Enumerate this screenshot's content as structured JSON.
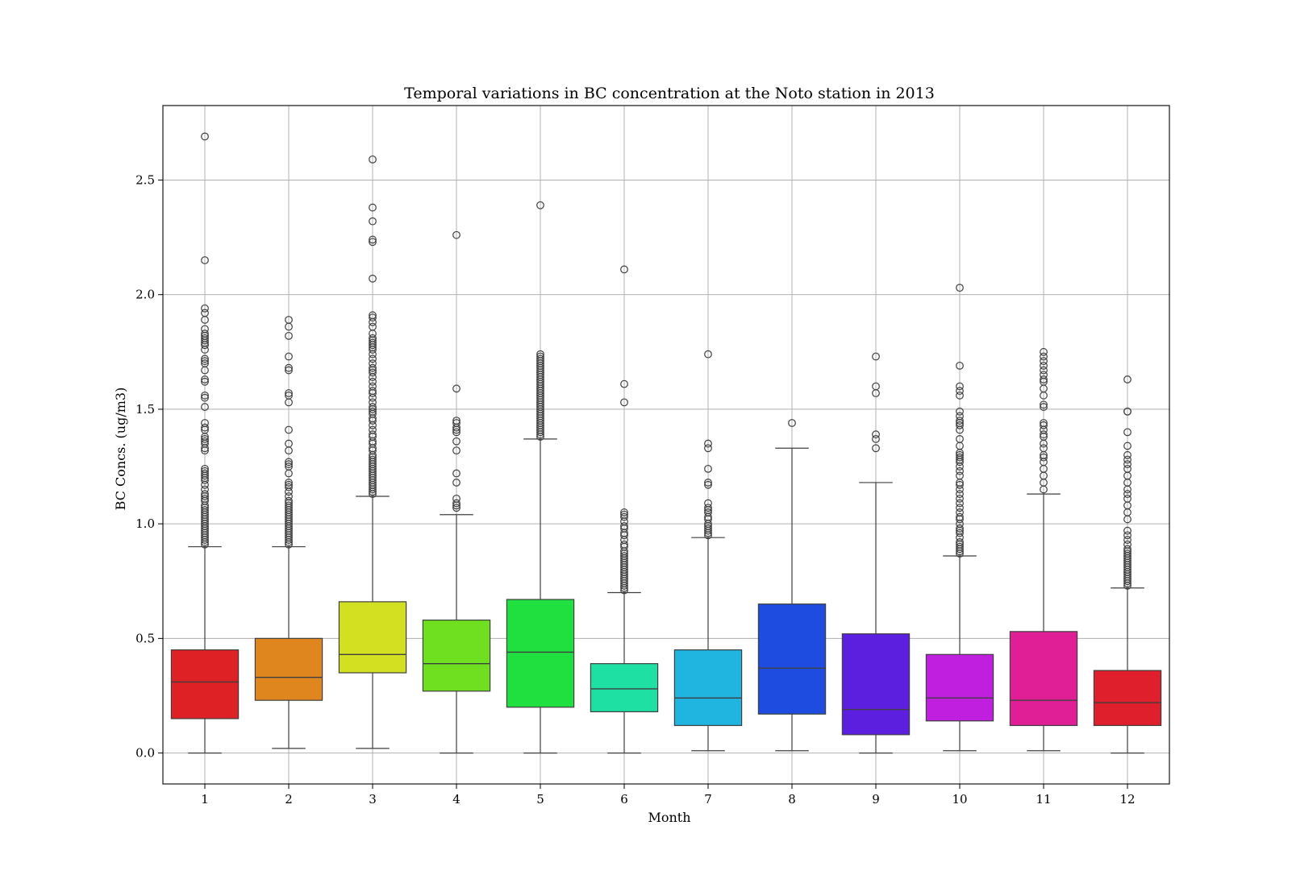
{
  "chart_data": {
    "type": "box",
    "title": "Temporal variations in BC concentration at the Noto station in 2013",
    "xlabel": "Month",
    "ylabel": "BC Concs. (ug/m3)",
    "ylim": [
      -0.135,
      2.825
    ],
    "yticks": [
      0.0,
      0.5,
      1.0,
      1.5,
      2.0,
      2.5
    ],
    "ytick_labels": [
      "0.0",
      "0.5",
      "1.0",
      "1.5",
      "2.0",
      "2.5"
    ],
    "grid": true,
    "categories": [
      "1",
      "2",
      "3",
      "4",
      "5",
      "6",
      "7",
      "8",
      "9",
      "10",
      "11",
      "12"
    ],
    "boxes": [
      {
        "month": "1",
        "color": "#dd2124",
        "whisker_low": 0.0,
        "q1": 0.15,
        "median": 0.31,
        "q3": 0.45,
        "whisker_high": 0.9,
        "outliers": [
          2.69,
          2.15,
          1.94,
          1.92,
          1.89,
          1.85,
          1.83,
          1.82,
          1.81,
          1.8,
          1.79,
          1.78,
          1.76,
          1.72,
          1.71,
          1.7,
          1.67,
          1.63,
          1.62,
          1.56,
          1.55,
          1.51,
          1.44,
          1.42,
          1.41,
          1.38,
          1.37,
          1.36,
          1.35,
          1.33,
          1.32,
          1.24,
          1.23,
          1.22,
          1.21,
          1.2,
          1.19,
          1.17,
          1.15,
          1.13,
          1.12,
          1.11,
          1.1,
          1.08,
          1.07,
          1.06,
          1.05,
          1.04,
          1.03,
          1.02,
          1.01,
          1.0,
          0.99,
          0.98,
          0.97,
          0.96,
          0.95,
          0.94,
          0.93,
          0.92,
          0.91
        ]
      },
      {
        "month": "2",
        "color": "#e0861f",
        "whisker_low": 0.02,
        "q1": 0.23,
        "median": 0.33,
        "q3": 0.5,
        "whisker_high": 0.9,
        "outliers": [
          1.89,
          1.86,
          1.82,
          1.73,
          1.68,
          1.67,
          1.57,
          1.56,
          1.53,
          1.41,
          1.35,
          1.32,
          1.27,
          1.26,
          1.25,
          1.22,
          1.18,
          1.17,
          1.16,
          1.14,
          1.12,
          1.1,
          1.09,
          1.08,
          1.07,
          1.06,
          1.05,
          1.04,
          1.03,
          1.02,
          1.01,
          1.0,
          0.99,
          0.98,
          0.97,
          0.96,
          0.95,
          0.94,
          0.93,
          0.92,
          0.91
        ]
      },
      {
        "month": "3",
        "color": "#d3e021",
        "whisker_low": 0.02,
        "q1": 0.35,
        "median": 0.43,
        "q3": 0.66,
        "whisker_high": 1.12,
        "outliers": [
          2.59,
          2.38,
          2.32,
          2.24,
          2.23,
          2.07,
          1.91,
          1.9,
          1.88,
          1.86,
          1.83,
          1.81,
          1.8,
          1.79,
          1.78,
          1.77,
          1.76,
          1.74,
          1.72,
          1.7,
          1.68,
          1.67,
          1.66,
          1.64,
          1.62,
          1.6,
          1.58,
          1.57,
          1.55,
          1.53,
          1.51,
          1.5,
          1.49,
          1.48,
          1.46,
          1.45,
          1.43,
          1.41,
          1.39,
          1.38,
          1.36,
          1.35,
          1.33,
          1.32,
          1.3,
          1.29,
          1.28,
          1.27,
          1.26,
          1.25,
          1.24,
          1.23,
          1.22,
          1.21,
          1.2,
          1.19,
          1.18,
          1.17,
          1.16,
          1.15,
          1.14,
          1.13
        ]
      },
      {
        "month": "4",
        "color": "#6fe01f",
        "whisker_low": 0.0,
        "q1": 0.27,
        "median": 0.39,
        "q3": 0.58,
        "whisker_high": 1.04,
        "outliers": [
          2.26,
          1.59,
          1.45,
          1.44,
          1.42,
          1.41,
          1.4,
          1.36,
          1.32,
          1.22,
          1.18,
          1.11,
          1.09,
          1.08,
          1.07
        ]
      },
      {
        "month": "5",
        "color": "#1fe03e",
        "whisker_low": 0.0,
        "q1": 0.2,
        "median": 0.44,
        "q3": 0.67,
        "whisker_high": 1.37,
        "outliers": [
          2.39,
          1.74,
          1.73,
          1.72,
          1.71,
          1.7,
          1.69,
          1.68,
          1.67,
          1.66,
          1.65,
          1.64,
          1.63,
          1.62,
          1.61,
          1.6,
          1.59,
          1.58,
          1.57,
          1.56,
          1.55,
          1.54,
          1.53,
          1.52,
          1.51,
          1.5,
          1.49,
          1.48,
          1.47,
          1.46,
          1.45,
          1.44,
          1.43,
          1.42,
          1.41,
          1.4,
          1.39,
          1.38
        ]
      },
      {
        "month": "6",
        "color": "#1fe0a3",
        "whisker_low": 0.0,
        "q1": 0.18,
        "median": 0.28,
        "q3": 0.39,
        "whisker_high": 0.7,
        "outliers": [
          2.11,
          1.61,
          1.53,
          1.05,
          1.04,
          1.03,
          1.01,
          0.99,
          0.98,
          0.96,
          0.95,
          0.93,
          0.91,
          0.9,
          0.88,
          0.87,
          0.86,
          0.85,
          0.84,
          0.83,
          0.82,
          0.81,
          0.8,
          0.79,
          0.78,
          0.77,
          0.76,
          0.75,
          0.74,
          0.73,
          0.72,
          0.71
        ]
      },
      {
        "month": "7",
        "color": "#1fb5e0",
        "whisker_low": 0.01,
        "q1": 0.12,
        "median": 0.24,
        "q3": 0.45,
        "whisker_high": 0.94,
        "outliers": [
          1.74,
          1.35,
          1.33,
          1.24,
          1.18,
          1.17,
          1.09,
          1.07,
          1.06,
          1.05,
          1.03,
          1.02,
          1.0,
          0.99,
          0.98,
          0.97,
          0.96,
          0.95
        ]
      },
      {
        "month": "8",
        "color": "#1f4ce0",
        "whisker_low": 0.01,
        "q1": 0.17,
        "median": 0.37,
        "q3": 0.65,
        "whisker_high": 1.33,
        "outliers": [
          1.44
        ]
      },
      {
        "month": "9",
        "color": "#5c1fe0",
        "whisker_low": 0.0,
        "q1": 0.08,
        "median": 0.19,
        "q3": 0.52,
        "whisker_high": 1.18,
        "outliers": [
          1.73,
          1.6,
          1.57,
          1.39,
          1.37,
          1.33
        ]
      },
      {
        "month": "10",
        "color": "#c11fe0",
        "whisker_low": 0.01,
        "q1": 0.14,
        "median": 0.24,
        "q3": 0.43,
        "whisker_high": 0.86,
        "outliers": [
          2.03,
          1.69,
          1.6,
          1.58,
          1.56,
          1.49,
          1.47,
          1.45,
          1.44,
          1.43,
          1.41,
          1.37,
          1.34,
          1.31,
          1.3,
          1.29,
          1.28,
          1.27,
          1.25,
          1.23,
          1.21,
          1.18,
          1.17,
          1.15,
          1.13,
          1.11,
          1.09,
          1.07,
          1.05,
          1.03,
          1.02,
          1.0,
          0.98,
          0.97,
          0.96,
          0.94,
          0.92,
          0.91,
          0.9,
          0.89,
          0.88,
          0.87
        ]
      },
      {
        "month": "11",
        "color": "#e01f96",
        "whisker_low": 0.01,
        "q1": 0.12,
        "median": 0.23,
        "q3": 0.53,
        "whisker_high": 1.13,
        "outliers": [
          1.75,
          1.73,
          1.71,
          1.69,
          1.67,
          1.65,
          1.63,
          1.62,
          1.59,
          1.56,
          1.52,
          1.51,
          1.44,
          1.43,
          1.41,
          1.39,
          1.38,
          1.35,
          1.33,
          1.3,
          1.29,
          1.27,
          1.24,
          1.21,
          1.18,
          1.15
        ]
      },
      {
        "month": "12",
        "color": "#e01f2c",
        "whisker_low": 0.0,
        "q1": 0.12,
        "median": 0.22,
        "q3": 0.36,
        "whisker_high": 0.72,
        "outliers": [
          1.63,
          1.49,
          1.49,
          1.4,
          1.34,
          1.3,
          1.28,
          1.26,
          1.24,
          1.21,
          1.18,
          1.15,
          1.13,
          1.11,
          1.08,
          1.05,
          1.02,
          0.97,
          0.95,
          0.93,
          0.91,
          0.89,
          0.88,
          0.87,
          0.86,
          0.85,
          0.84,
          0.83,
          0.82,
          0.81,
          0.8,
          0.79,
          0.78,
          0.77,
          0.76,
          0.75,
          0.74,
          0.73
        ]
      }
    ]
  }
}
